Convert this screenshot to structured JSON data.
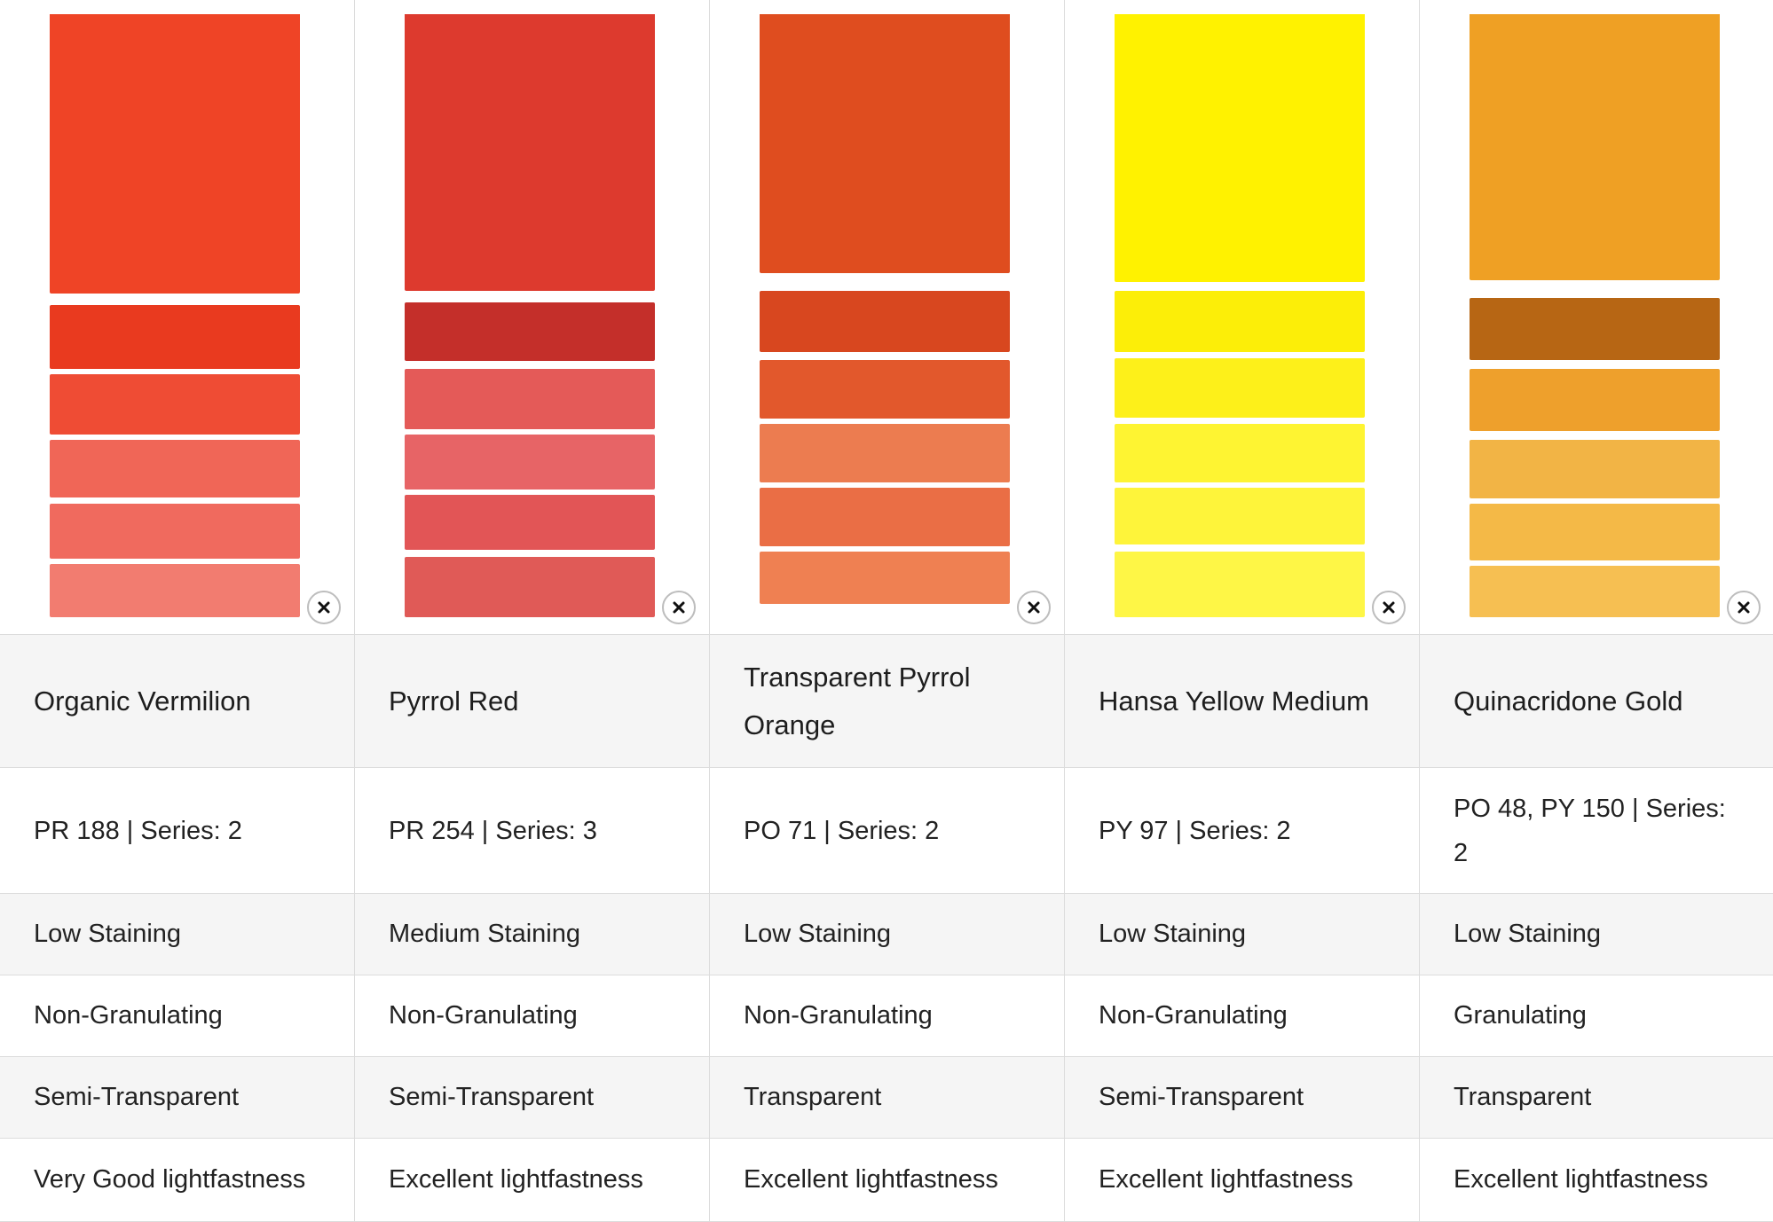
{
  "paints": [
    {
      "name": "Organic Vermilion",
      "pigment": "PR 188 | Series: 2",
      "staining": "Low Staining",
      "granulation": "Non-Granulating",
      "transparency": "Semi-Transparent",
      "lightfastness": "Very Good lightfastness",
      "colors": {
        "masstone": "#ef4426",
        "band1": "#e93a1f",
        "band2": "#ef4c34",
        "band3": "#f06657",
        "band4": "#f06a5e",
        "band5": "#f27c70"
      }
    },
    {
      "name": "Pyrrol Red",
      "pigment": "PR 254 | Series: 3",
      "staining": "Medium Staining",
      "granulation": "Non-Granulating",
      "transparency": "Semi-Transparent",
      "lightfastness": "Excellent lightfastness",
      "colors": {
        "masstone": "#dd3a2e",
        "band1": "#c42f2a",
        "band2": "#e45a58",
        "band3": "#e76466",
        "band4": "#e25556",
        "band5": "#e05a57"
      }
    },
    {
      "name": "Transparent Pyrrol Orange",
      "pigment": "PO 71 | Series: 2",
      "staining": "Low Staining",
      "granulation": "Non-Granulating",
      "transparency": "Transparent",
      "lightfastness": "Excellent lightfastness",
      "colors": {
        "masstone": "#df4d1f",
        "band1": "#d8471f",
        "band2": "#e2582c",
        "band3": "#ec7c50",
        "band4": "#ea6e45",
        "band5": "#ef8052"
      }
    },
    {
      "name": "Hansa Yellow Medium",
      "pigment": "PY 97 | Series: 2",
      "staining": "Low Staining",
      "granulation": "Non-Granulating",
      "transparency": "Semi-Transparent",
      "lightfastness": "Excellent lightfastness",
      "colors": {
        "masstone": "#fff200",
        "band1": "#fcee08",
        "band2": "#fdf01a",
        "band3": "#fef432",
        "band4": "#fef43a",
        "band5": "#fef646"
      }
    },
    {
      "name": "Quinacridone Gold",
      "pigment": "PO 48, PY 150 | Series: 2",
      "staining": "Low Staining",
      "granulation": "Granulating",
      "transparency": "Transparent",
      "lightfastness": "Excellent lightfastness",
      "colors": {
        "masstone": "#efa024",
        "band1": "#b76614",
        "band2": "#eea02c",
        "band3": "#f2b445",
        "band4": "#f4b947",
        "band5": "#f6bf52"
      }
    }
  ],
  "remove_icon": "close-icon"
}
